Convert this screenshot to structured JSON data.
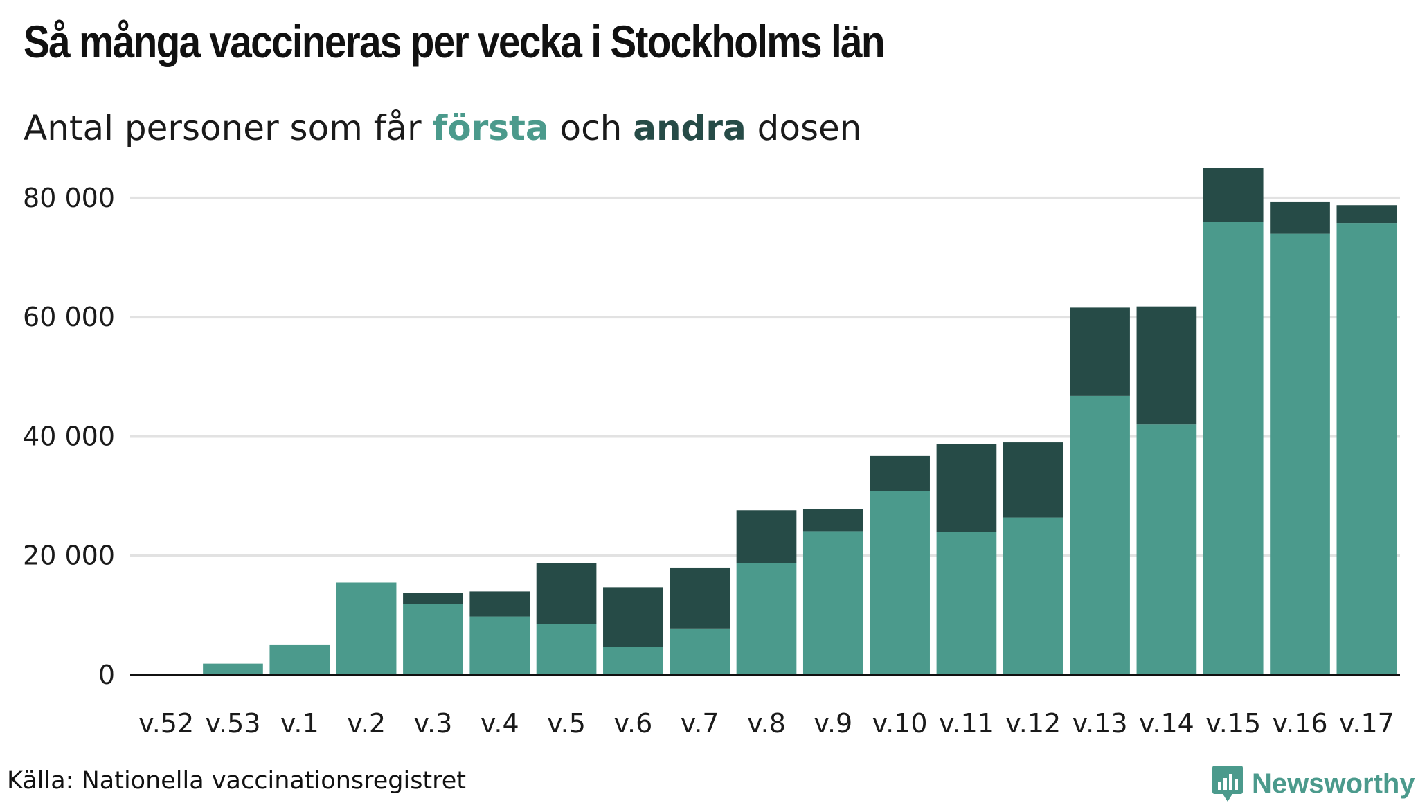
{
  "header": {
    "title": "Så många vaccineras per vecka i Stockholms län",
    "subtitle_prefix": "Antal personer som får ",
    "subtitle_first": "första",
    "subtitle_mid": " och ",
    "subtitle_second": "andra",
    "subtitle_suffix": " dosen"
  },
  "footer": {
    "source": "Källa: Nationella vaccinationsregistret",
    "brand": "Newsworthy",
    "brand_icon": "newsworthy-logo-icon"
  },
  "colors": {
    "first_dose": "#4b9a8c",
    "second_dose": "#264b47",
    "grid": "#e2e2e2",
    "baseline": "#111111"
  },
  "chart_data": {
    "type": "bar",
    "stacked": true,
    "categories": [
      "v.52",
      "v.53",
      "v.1",
      "v.2",
      "v.3",
      "v.4",
      "v.5",
      "v.6",
      "v.7",
      "v.8",
      "v.9",
      "v.10",
      "v.11",
      "v.12",
      "v.13",
      "v.14",
      "v.15",
      "v.16",
      "v.17"
    ],
    "series": [
      {
        "name": "första",
        "color": "#4b9a8c",
        "values": [
          0,
          1900,
          5000,
          15500,
          11900,
          9800,
          8500,
          4700,
          7800,
          18800,
          24100,
          30800,
          24000,
          26400,
          46800,
          42000,
          76000,
          74000,
          75800
        ]
      },
      {
        "name": "andra",
        "color": "#264b47",
        "values": [
          0,
          0,
          0,
          0,
          1900,
          4200,
          10200,
          10000,
          10200,
          8800,
          3700,
          5900,
          14700,
          12600,
          14800,
          19800,
          9000,
          5300,
          3000
        ]
      }
    ],
    "ylim": [
      0,
      88000
    ],
    "yticks": [
      0,
      20000,
      40000,
      60000,
      80000
    ],
    "ytick_labels": [
      "0",
      "20 000",
      "40 000",
      "60 000",
      "80 000"
    ],
    "grid": true,
    "legend": "in subtitle"
  }
}
